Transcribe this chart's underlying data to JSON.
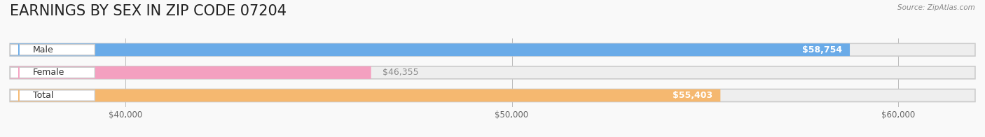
{
  "title": "EARNINGS BY SEX IN ZIP CODE 07204",
  "source": "Source: ZipAtlas.com",
  "categories": [
    "Male",
    "Female",
    "Total"
  ],
  "values": [
    58754,
    46355,
    55403
  ],
  "bar_colors": [
    "#6aabe8",
    "#f4a0c0",
    "#f5b870"
  ],
  "bar_bg_color": "#eeeeee",
  "label_colors": [
    "#ffffff",
    "#888888",
    "#ffffff"
  ],
  "label_positions": [
    "inside_right",
    "outside_right",
    "inside_right"
  ],
  "xlim_min": 37000,
  "xlim_max": 62000,
  "xticks": [
    40000,
    50000,
    60000
  ],
  "xtick_labels": [
    "$40,000",
    "$50,000",
    "$60,000"
  ],
  "value_labels": [
    "$58,754",
    "$46,355",
    "$55,403"
  ],
  "bg_color": "#f9f9f9",
  "title_fontsize": 15,
  "bar_height": 0.55,
  "figsize": [
    14.06,
    1.96
  ]
}
